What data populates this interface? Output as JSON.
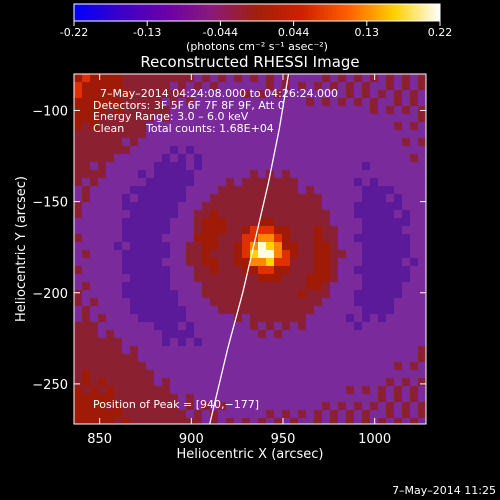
{
  "colors": {
    "background": "#000000",
    "foreground": "#ffffff",
    "colormap": [
      "#0000ff",
      "#3a00c8",
      "#6a00a8",
      "#8a1a7a",
      "#a0200a",
      "#d02000",
      "#ff6000",
      "#ffd000",
      "#ffffff"
    ]
  },
  "colorbar": {
    "min": -0.22,
    "max": 0.22,
    "tick_labels": [
      "-0.22",
      "-0.13",
      "-0.044",
      "0.044",
      "0.13",
      "0.22"
    ],
    "units_label": "(photons cm⁻² s⁻¹ asec⁻²)"
  },
  "chart_data": {
    "type": "heatmap",
    "title": "Reconstructed RHESSI Image",
    "xlabel": "Heliocentric X (arcsec)",
    "ylabel": "Heliocentric Y (arcsec)",
    "xlim": [
      836,
      1028
    ],
    "ylim": [
      -272,
      -80
    ],
    "x_ticks": [
      850,
      900,
      950,
      1000
    ],
    "y_ticks": [
      -250,
      -200,
      -150,
      -100
    ],
    "x_tick_labels": [
      "850",
      "900",
      "950",
      "1000"
    ],
    "y_tick_labels": [
      "−250",
      "−200",
      "−150",
      "−100"
    ],
    "peak": {
      "x": 940,
      "y": -177,
      "value": 0.22
    },
    "limb_curve": [
      [
        910,
        -272
      ],
      [
        920,
        -230
      ],
      [
        928,
        -200
      ],
      [
        935,
        -170
      ],
      [
        942,
        -140
      ],
      [
        948,
        -110
      ],
      [
        953,
        -80
      ]
    ],
    "annotations": {
      "time_range": "7–May–2014 04:24:08.000 to 04:26:24.000",
      "detectors": "Detectors: 3F 5F 6F 7F 8F 9F, Att 0",
      "energy_range": "Energy Range: 3.0 – 6.0 keV",
      "clean": "Clean",
      "total_counts": "Total counts: 1.68E+04",
      "position_of_peak": "Position of Peak = [940,−177]"
    },
    "timestamp": "7–May–2014 11:25"
  }
}
